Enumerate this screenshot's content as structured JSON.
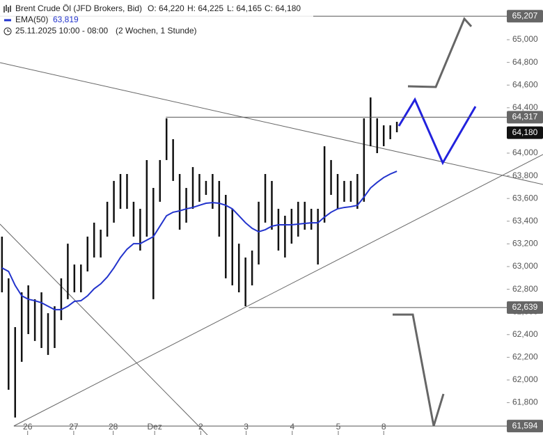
{
  "chart_data": {
    "type": "ohlc",
    "title": "Brent Crude Öl (JFD Brokers, Bid)",
    "ohlc_header": [
      "O: 64,220",
      "H: 64,225",
      "L: 64,165",
      "C: 64,180"
    ],
    "indicator": {
      "name": "EMA(50)",
      "value_label": "63,819",
      "color": "#2233cc"
    },
    "period": "25.11.2025 10:00 - 08:00",
    "period_note": "(2 Wochen, 1 Stunde)",
    "x": [
      0,
      1,
      2,
      3,
      4,
      5,
      6,
      7,
      8,
      9,
      10,
      11,
      12,
      13,
      14,
      15,
      16,
      17,
      18,
      19,
      20,
      21,
      22,
      23,
      24,
      25,
      26,
      27,
      28,
      29,
      30,
      31,
      32,
      33,
      34,
      35,
      36,
      37,
      38,
      39,
      40,
      41,
      42,
      43,
      44,
      45,
      46,
      47,
      48,
      49,
      50,
      51,
      52,
      53,
      54,
      55,
      56,
      57,
      58,
      59,
      60
    ],
    "high": [
      63264,
      62896,
      62466,
      62773,
      62834,
      62712,
      62773,
      62589,
      62650,
      62896,
      63202,
      63018,
      63018,
      63264,
      63387,
      63325,
      63571,
      63755,
      63816,
      63816,
      63571,
      63509,
      63939,
      63693,
      63939,
      64307,
      64123,
      63816,
      63693,
      63877,
      63816,
      63755,
      63816,
      63755,
      63632,
      63509,
      63202,
      63080,
      63141,
      63571,
      63816,
      63755,
      63509,
      63448,
      63509,
      63571,
      63571,
      63509,
      63509,
      64061,
      63939,
      63816,
      63755,
      63755,
      63816,
      64307,
      64491,
      64307,
      64245,
      64245,
      64276
    ],
    "low": [
      62773,
      61914,
      61669,
      62160,
      62405,
      62344,
      62282,
      62221,
      62282,
      62528,
      62712,
      62773,
      62773,
      62957,
      63080,
      63080,
      63264,
      63387,
      63509,
      63509,
      63264,
      63141,
      63264,
      62712,
      63571,
      63939,
      63755,
      63325,
      63387,
      63509,
      63571,
      63632,
      63509,
      63264,
      62896,
      62834,
      62773,
      62650,
      62834,
      63018,
      63387,
      63325,
      63141,
      63080,
      63202,
      63264,
      63325,
      63325,
      63018,
      63387,
      63632,
      63509,
      63571,
      63571,
      63509,
      63571,
      64061,
      64000,
      64061,
      64123,
      64184
    ],
    "ema": [
      62988,
      62957,
      62834,
      62742,
      62712,
      62699,
      62681,
      62650,
      62620,
      62620,
      62650,
      62693,
      62699,
      62742,
      62804,
      62847,
      62908,
      62988,
      63080,
      63153,
      63202,
      63202,
      63233,
      63264,
      63356,
      63448,
      63479,
      63491,
      63509,
      63521,
      63540,
      63558,
      63564,
      63558,
      63540,
      63509,
      63448,
      63386,
      63337,
      63307,
      63325,
      63356,
      63368,
      63368,
      63368,
      63374,
      63380,
      63386,
      63386,
      63436,
      63479,
      63509,
      63521,
      63528,
      63540,
      63613,
      63693,
      63742,
      63785,
      63816,
      63840
    ],
    "color": "#111111",
    "xlim": [
      -0.3,
      76.7
    ],
    "ylim": [
      61515,
      65350
    ],
    "xticks": [
      {
        "value": 3.9,
        "label": "26"
      },
      {
        "value": 10.9,
        "label": "27"
      },
      {
        "value": 16.9,
        "label": "28"
      },
      {
        "value": 23.2,
        "label": "Dez"
      },
      {
        "value": 30.2,
        "label": "2"
      },
      {
        "value": 37.1,
        "label": "3"
      },
      {
        "value": 44.1,
        "label": "4"
      },
      {
        "value": 51.1,
        "label": "5"
      },
      {
        "value": 58.0,
        "label": "8"
      }
    ],
    "yticks": [
      {
        "value": 61800,
        "label": "61,800"
      },
      {
        "value": 62000,
        "label": "62,000"
      },
      {
        "value": 62200,
        "label": "62,200"
      },
      {
        "value": 62400,
        "label": "62,400"
      },
      {
        "value": 62600,
        "label": "62,600"
      },
      {
        "value": 62800,
        "label": "62,800"
      },
      {
        "value": 63000,
        "label": "63,000"
      },
      {
        "value": 63200,
        "label": "63,200"
      },
      {
        "value": 63400,
        "label": "63,400"
      },
      {
        "value": 63600,
        "label": "63,600"
      },
      {
        "value": 63800,
        "label": "63,800"
      },
      {
        "value": 64000,
        "label": "64,000"
      },
      {
        "value": 64200,
        "label": "64,200"
      },
      {
        "value": 64400,
        "label": "64,400"
      },
      {
        "value": 64600,
        "label": "64,600"
      },
      {
        "value": 64800,
        "label": "64,800"
      },
      {
        "value": 65000,
        "label": "65,000"
      }
    ],
    "levels": [
      {
        "value": 65207,
        "label": "65,207",
        "from_x": -0.3
      },
      {
        "value": 64317,
        "label": "64,317",
        "from_x": 24.9
      },
      {
        "value": 62639,
        "label": "62,639",
        "from_x": 37.5
      },
      {
        "value": 61594,
        "label": "61,594",
        "from_x": 1.8
      }
    ],
    "last_price": {
      "value": 64180,
      "label": "64,180"
    }
  }
}
